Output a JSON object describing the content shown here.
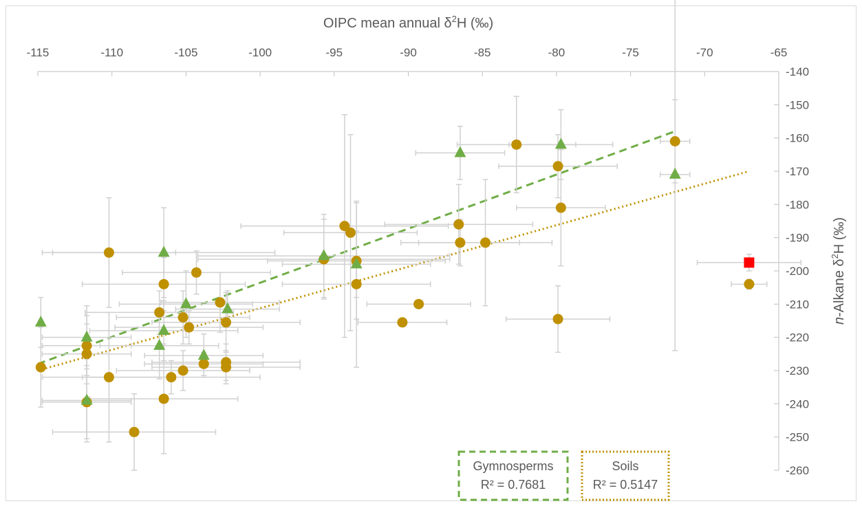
{
  "chart_data": {
    "type": "scatter",
    "x_axis": {
      "title_parts": [
        "OIPC mean annual δ",
        "2",
        "H (‰)"
      ],
      "position": "top",
      "range": [
        -115,
        -65
      ],
      "tick_step": 5,
      "tick_labels": [
        "-115",
        "-110",
        "-105",
        "-100",
        "-95",
        "-90",
        "-85",
        "-80",
        "-75",
        "-70",
        "-65"
      ]
    },
    "y_axis": {
      "title_parts": [
        "n",
        "-Alkane δ",
        "2",
        "H (‰)"
      ],
      "position": "right",
      "range": [
        -260,
        -140
      ],
      "tick_step": 10,
      "tick_labels": [
        "-140",
        "-150",
        "-160",
        "-170",
        "-180",
        "-190",
        "-200",
        "-210",
        "-220",
        "-230",
        "-240",
        "-250",
        "-260"
      ]
    },
    "grid": false,
    "colors": {
      "gymnosperms": "#70AD47",
      "soils": "#BF9000",
      "special": "#FF0000",
      "error_bars": "#D0D0D0",
      "axis": "#BFBFBF",
      "text": "#595959"
    },
    "series": [
      {
        "name": "Gymnosperms",
        "marker": "triangle",
        "trendline": {
          "style": "dashed",
          "x_range": [
            -115,
            -72
          ],
          "y_range": [
            -228,
            -158
          ],
          "label": "R² = 0.7681"
        },
        "points": [
          {
            "x": -114.8,
            "y": -215.5,
            "xerr": 0,
            "yerr": 7.5
          },
          {
            "x": -111.7,
            "y": -220.0,
            "xerr": 3.0,
            "yerr": 9.5
          },
          {
            "x": -111.7,
            "y": -239.0,
            "xerr": 3.0,
            "yerr": 12.5
          },
          {
            "x": -106.5,
            "y": -194.5,
            "xerr": 7.5,
            "yerr": 13.5
          },
          {
            "x": -106.5,
            "y": -218.0,
            "xerr": 5.0,
            "yerr": 9.0
          },
          {
            "x": -106.8,
            "y": -222.5,
            "xerr": 4.0,
            "yerr": 10.0
          },
          {
            "x": -105.0,
            "y": -210.0,
            "xerr": 4.5,
            "yerr": 10.0
          },
          {
            "x": -103.8,
            "y": -225.5,
            "xerr": 4.0,
            "yerr": 6.5
          },
          {
            "x": -102.2,
            "y": -211.5,
            "xerr": 3.5,
            "yerr": 5.5
          },
          {
            "x": -95.7,
            "y": -195.5,
            "xerr": 8.5,
            "yerr": 12.5
          },
          {
            "x": -93.5,
            "y": -198.0,
            "xerr": 5.0,
            "yerr": 10.0
          },
          {
            "x": -86.5,
            "y": -164.5,
            "xerr": 3.0,
            "yerr": 8.0
          },
          {
            "x": -79.7,
            "y": -162.0,
            "xerr": 3.5,
            "yerr": 10.5
          },
          {
            "x": -72.0,
            "y": -171.0,
            "xerr": 1.0,
            "yerr": 53.0
          }
        ]
      },
      {
        "name": "Soils",
        "marker": "circle",
        "trendline": {
          "style": "dotted",
          "x_range": [
            -115,
            -67
          ],
          "y_range": [
            -230,
            -170
          ],
          "label": "R² = 0.5147"
        },
        "points": [
          {
            "x": -114.8,
            "y": -229.0,
            "xerr": 0,
            "yerr": 12.0
          },
          {
            "x": -111.7,
            "y": -222.5,
            "xerr": 3.0,
            "yerr": 9.0
          },
          {
            "x": -111.7,
            "y": -225.0,
            "xerr": 3.0,
            "yerr": 9.0
          },
          {
            "x": -111.7,
            "y": -239.5,
            "xerr": 3.0,
            "yerr": 11.0
          },
          {
            "x": -110.2,
            "y": -194.5,
            "xerr": 4.5,
            "yerr": 16.5
          },
          {
            "x": -110.2,
            "y": -232.0,
            "xerr": 4.5,
            "yerr": 19.5
          },
          {
            "x": -108.5,
            "y": -248.5,
            "xerr": 5.5,
            "yerr": 11.5
          },
          {
            "x": -106.5,
            "y": -204.0,
            "xerr": 5.5,
            "yerr": 8.0
          },
          {
            "x": -106.5,
            "y": -238.5,
            "xerr": 5.0,
            "yerr": 16.5
          },
          {
            "x": -106.8,
            "y": -212.5,
            "xerr": 5.0,
            "yerr": 6.5
          },
          {
            "x": -106.0,
            "y": -232.0,
            "xerr": 6.0,
            "yerr": 5.0
          },
          {
            "x": -105.2,
            "y": -214.0,
            "xerr": 4.5,
            "yerr": 8.0
          },
          {
            "x": -105.2,
            "y": -230.0,
            "xerr": 4.5,
            "yerr": 6.0
          },
          {
            "x": -104.8,
            "y": -217.0,
            "xerr": 5.0,
            "yerr": 5.0
          },
          {
            "x": -104.3,
            "y": -200.5,
            "xerr": 5.0,
            "yerr": 6.5
          },
          {
            "x": -103.8,
            "y": -228.0,
            "xerr": 4.0,
            "yerr": 3.5
          },
          {
            "x": -102.7,
            "y": -209.5,
            "xerr": 4.0,
            "yerr": 9.0
          },
          {
            "x": -102.3,
            "y": -215.5,
            "xerr": 5.0,
            "yerr": 9.0
          },
          {
            "x": -102.3,
            "y": -227.5,
            "xerr": 5.0,
            "yerr": 5.5
          },
          {
            "x": -102.3,
            "y": -229.0,
            "xerr": 5.0,
            "yerr": 5.0
          },
          {
            "x": -95.7,
            "y": -196.5,
            "xerr": 8.5,
            "yerr": 12.0
          },
          {
            "x": -94.3,
            "y": -186.5,
            "xerr": 7.0,
            "yerr": 33.5
          },
          {
            "x": -93.9,
            "y": -188.5,
            "xerr": 4.5,
            "yerr": 29.5
          },
          {
            "x": -93.5,
            "y": -197.0,
            "xerr": 6.0,
            "yerr": 17.5
          },
          {
            "x": -93.5,
            "y": -204.0,
            "xerr": 5.0,
            "yerr": 25.0
          },
          {
            "x": -90.4,
            "y": -215.5,
            "xerr": 3.0,
            "yerr": 0
          },
          {
            "x": -89.3,
            "y": -210.0,
            "xerr": 3.5,
            "yerr": 0
          },
          {
            "x": -86.6,
            "y": -186.0,
            "xerr": 5.0,
            "yerr": 12.0
          },
          {
            "x": -86.5,
            "y": -191.5,
            "xerr": 4.0,
            "yerr": 7.0
          },
          {
            "x": -84.8,
            "y": -191.5,
            "xerr": 4.5,
            "yerr": 19.0
          },
          {
            "x": -82.7,
            "y": -162.0,
            "xerr": 4.0,
            "yerr": 14.5
          },
          {
            "x": -79.9,
            "y": -168.5,
            "xerr": 4.0,
            "yerr": 9.5
          },
          {
            "x": -79.7,
            "y": -181.0,
            "xerr": 3.0,
            "yerr": 17.5
          },
          {
            "x": -79.9,
            "y": -214.5,
            "xerr": 3.5,
            "yerr": 10.0
          },
          {
            "x": -72.0,
            "y": -161.0,
            "xerr": 1.0,
            "yerr": 12.5
          },
          {
            "x": -67.0,
            "y": -204.0,
            "xerr": 1.2,
            "yerr": 1.5
          }
        ]
      },
      {
        "marker": "square",
        "points": [
          {
            "x": -67.0,
            "y": -197.5,
            "xerr": 3.5,
            "yerr": 2.5
          }
        ]
      }
    ]
  },
  "legend": {
    "gymnosperms": {
      "title": "Gymnosperms",
      "r2": "R² = 0.7681"
    },
    "soils": {
      "title": "Soils",
      "r2": "R² = 0.5147"
    }
  }
}
